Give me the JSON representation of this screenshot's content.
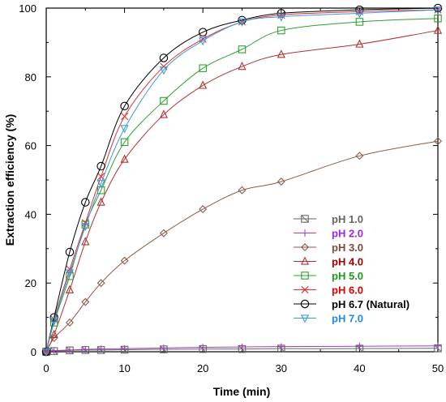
{
  "chart_data": {
    "type": "line",
    "xlabel": "Time (min)",
    "ylabel": "Extraction efficiency (%)",
    "xlim": [
      0,
      50
    ],
    "ylim": [
      0,
      100
    ],
    "xticks": [
      0,
      10,
      20,
      30,
      40,
      50
    ],
    "yticks": [
      0,
      20,
      40,
      60,
      80,
      100
    ],
    "grid": false,
    "legend_position": "right",
    "series": [
      {
        "name": "pH 1.0",
        "color": "#666666",
        "text_color": "#666666",
        "marker": "square-x",
        "x": [
          0,
          1,
          3,
          5,
          7,
          10,
          15,
          20,
          25,
          30,
          40,
          50
        ],
        "y": [
          0,
          0.2,
          0.4,
          0.5,
          0.5,
          0.6,
          0.7,
          0.8,
          0.8,
          0.9,
          0.9,
          1.0
        ]
      },
      {
        "name": "pH 2.0",
        "color": "#a43cc0",
        "text_color": "#a020f0",
        "marker": "plus",
        "x": [
          0,
          1,
          3,
          5,
          7,
          10,
          15,
          20,
          25,
          30,
          40,
          50
        ],
        "y": [
          0,
          0.3,
          0.5,
          0.7,
          0.8,
          0.9,
          1.1,
          1.3,
          1.4,
          1.5,
          1.6,
          1.7
        ]
      },
      {
        "name": "pH 3.0",
        "color": "#8b5a4a",
        "text_color": "#7a4a3a",
        "marker": "diamond",
        "x": [
          0,
          1,
          3,
          5,
          7,
          10,
          15,
          20,
          25,
          30,
          40,
          50
        ],
        "y": [
          0,
          4,
          8.5,
          14.5,
          20,
          26.5,
          34.5,
          41.5,
          47,
          49.5,
          57,
          61.3
        ]
      },
      {
        "name": "pH 4.0",
        "color": "#b03030",
        "text_color": "#a00000",
        "marker": "triangle",
        "x": [
          0,
          1,
          3,
          5,
          7,
          10,
          15,
          20,
          25,
          30,
          40,
          50
        ],
        "y": [
          0,
          5,
          18,
          32,
          43.5,
          56,
          69,
          77.5,
          83,
          86.5,
          89.5,
          93.5
        ]
      },
      {
        "name": "pH 5.0",
        "color": "#2ca02c",
        "text_color": "#1a9a1a",
        "marker": "square",
        "x": [
          0,
          1,
          3,
          5,
          7,
          10,
          15,
          20,
          25,
          30,
          40,
          50
        ],
        "y": [
          0,
          8.5,
          22,
          37,
          47,
          61,
          73,
          82.5,
          88,
          93.5,
          96,
          97
        ]
      },
      {
        "name": "pH 6.0",
        "color": "#e03030",
        "text_color": "#e00000",
        "marker": "x",
        "x": [
          0,
          1,
          3,
          5,
          7,
          10,
          15,
          20,
          25,
          30,
          40,
          50
        ],
        "y": [
          0,
          9.5,
          24,
          37.5,
          51,
          68.5,
          83,
          91,
          96,
          98,
          99,
          99.5
        ]
      },
      {
        "name": "pH 6.7 (Natural)",
        "color": "#000000",
        "text_color": "#000000",
        "marker": "circle",
        "x": [
          0,
          1,
          3,
          5,
          7,
          10,
          15,
          20,
          25,
          30,
          40,
          50
        ],
        "y": [
          0,
          10,
          29,
          43.5,
          54,
          71.5,
          85.5,
          93,
          96.5,
          98.5,
          99.5,
          100
        ]
      },
      {
        "name": "pH 7.0",
        "color": "#3b9ae0",
        "text_color": "#1f8ae0",
        "marker": "triangle-down",
        "x": [
          0,
          1,
          3,
          5,
          7,
          10,
          15,
          20,
          25,
          30,
          40,
          50
        ],
        "y": [
          0,
          9,
          23,
          36.5,
          49,
          65,
          82,
          90.5,
          96,
          97.5,
          98.5,
          99.5
        ]
      }
    ]
  }
}
